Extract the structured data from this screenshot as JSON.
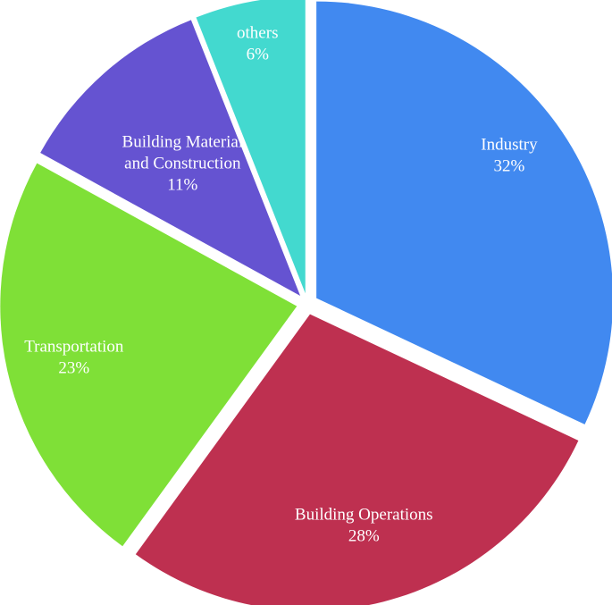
{
  "chart_data": {
    "type": "pie",
    "title": "",
    "slices": [
      {
        "label": "Industry",
        "pct_label": "32%",
        "value": 32,
        "color": "#4189F0"
      },
      {
        "label": "Building Operations",
        "pct_label": "28%",
        "value": 28,
        "color": "#BE3050"
      },
      {
        "label": "Transportation",
        "pct_label": "23%",
        "value": 23,
        "color": "#7FE037"
      },
      {
        "label": "Building Material and Construction",
        "label_lines": [
          "Building Material",
          "and Construction"
        ],
        "pct_label": "11%",
        "value": 11,
        "color": "#6553D1"
      },
      {
        "label": "others",
        "pct_label": "6%",
        "value": 6,
        "color": "#43D9CF"
      }
    ]
  }
}
